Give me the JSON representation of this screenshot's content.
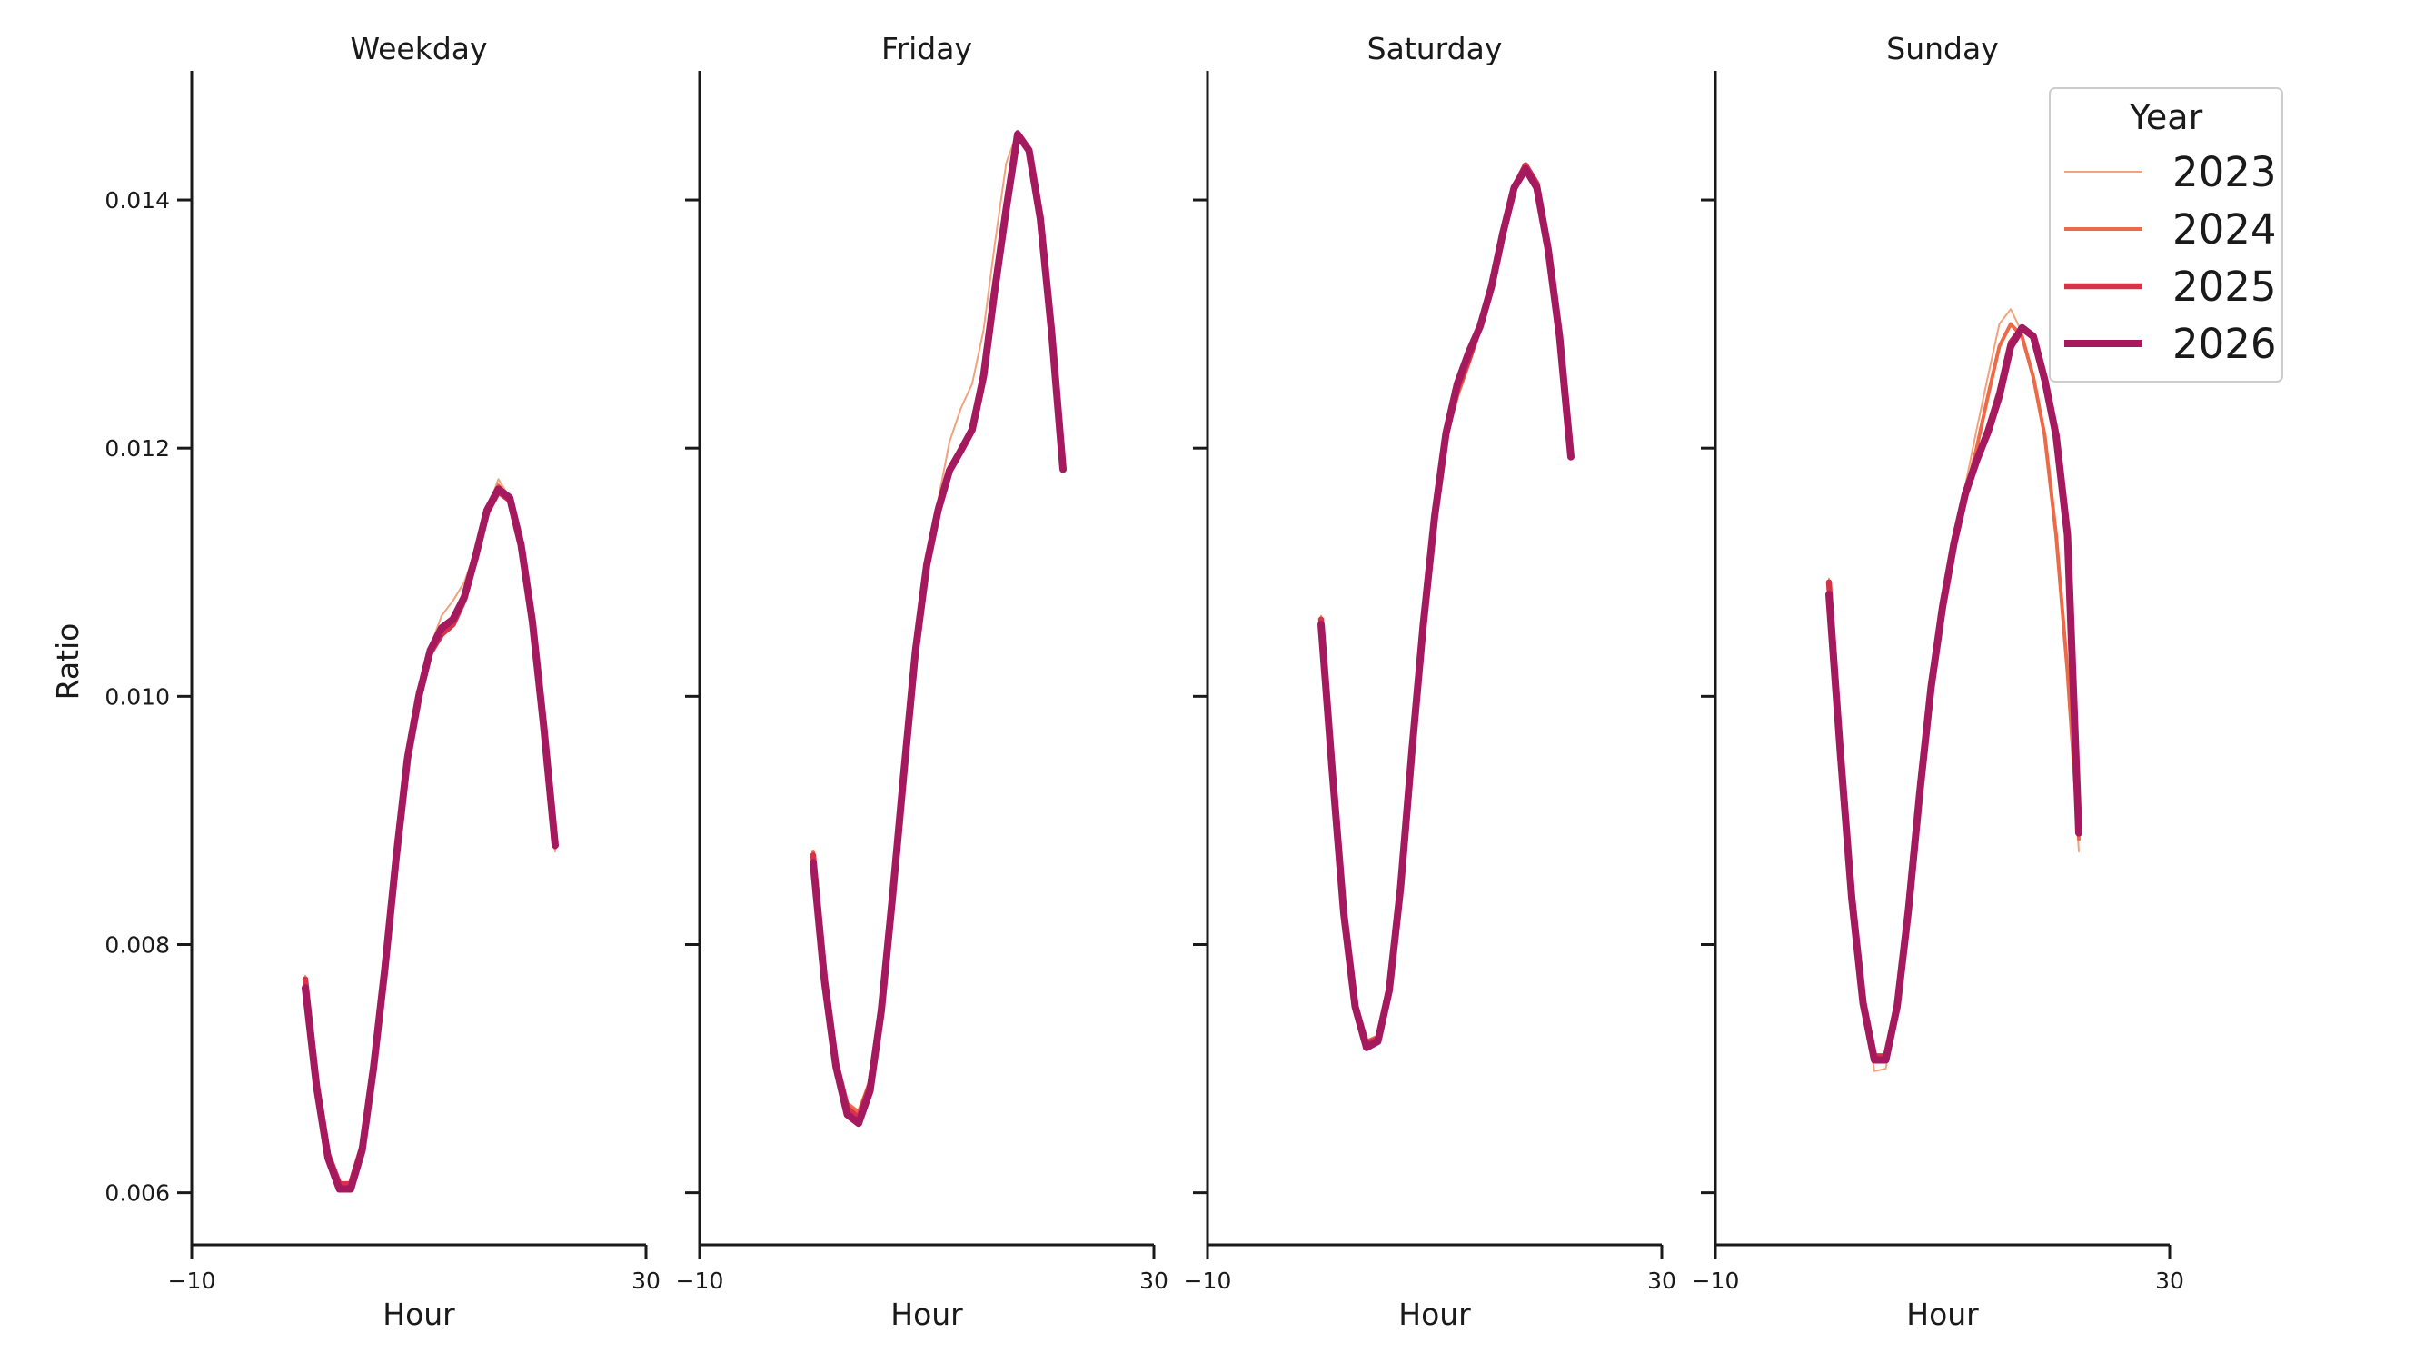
{
  "chart_data": {
    "type": "line",
    "ylabel": "Ratio",
    "xlabel": "Hour",
    "xlim": [
      -10,
      30
    ],
    "ylim": [
      0.00558,
      0.01504
    ],
    "x_ticks": [
      -10,
      30
    ],
    "x_tick_labels": [
      "−10",
      "30"
    ],
    "y_ticks": [
      0.006,
      0.008,
      0.01,
      0.012,
      0.014
    ],
    "y_tick_labels": [
      "0.006",
      "0.008",
      "0.010",
      "0.012",
      "0.014"
    ],
    "grid": false,
    "legend": {
      "title": "Year",
      "placement": "top-right",
      "entries": [
        {
          "label": "2023",
          "color": "#f3a27e"
        },
        {
          "label": "2024",
          "color": "#ec6a48"
        },
        {
          "label": "2025",
          "color": "#d5334a"
        },
        {
          "label": "2026",
          "color": "#a5195e"
        }
      ]
    },
    "x": [
      0,
      1,
      2,
      3,
      4,
      5,
      6,
      7,
      8,
      9,
      10,
      11,
      12,
      13,
      14,
      15,
      16,
      17,
      18,
      19,
      20,
      21,
      22,
      23
    ],
    "panels": [
      {
        "title": "Weekday",
        "series": [
          {
            "name": "2023",
            "values": [
              0.00775,
              0.0069,
              0.00632,
              0.00608,
              0.00608,
              0.0064,
              0.00705,
              0.00785,
              0.00875,
              0.00955,
              0.01005,
              0.0104,
              0.01065,
              0.01077,
              0.01092,
              0.01118,
              0.0115,
              0.01175,
              0.0116,
              0.0112,
              0.01058,
              0.00975,
              0.00875,
              null
            ]
          },
          {
            "name": "2024",
            "values": [
              0.0077,
              0.00688,
              0.0063,
              0.00606,
              0.00606,
              0.00636,
              0.00702,
              0.00782,
              0.00872,
              0.00952,
              0.01002,
              0.01035,
              0.01052,
              0.0106,
              0.01078,
              0.01112,
              0.0115,
              0.0117,
              0.0116,
              0.0112,
              0.01058,
              0.00975,
              0.00878,
              null
            ]
          },
          {
            "name": "2025",
            "values": [
              0.00772,
              0.00688,
              0.00631,
              0.00607,
              0.00607,
              0.00637,
              0.00703,
              0.00783,
              0.00873,
              0.00953,
              0.01003,
              0.01035,
              0.0105,
              0.01058,
              0.01078,
              0.01112,
              0.01148,
              0.01165,
              0.01158,
              0.01122,
              0.0106,
              0.00975,
              0.0088,
              null
            ]
          },
          {
            "name": "2026",
            "values": [
              0.00765,
              0.00685,
              0.00628,
              0.00603,
              0.00603,
              0.00634,
              0.007,
              0.0078,
              0.0087,
              0.0095,
              0.01,
              0.01037,
              0.01055,
              0.01062,
              0.0108,
              0.01113,
              0.0115,
              0.01167,
              0.0116,
              0.01122,
              0.0106,
              0.00975,
              0.0088,
              null
            ]
          }
        ]
      },
      {
        "title": "Friday",
        "series": [
          {
            "name": "2023",
            "values": [
              0.00875,
              0.00778,
              0.00708,
              0.0067,
              0.00662,
              0.00688,
              0.00752,
              0.00845,
              0.00945,
              0.0104,
              0.0111,
              0.01158,
              0.01205,
              0.01232,
              0.01252,
              0.01295,
              0.01365,
              0.0143,
              0.01455,
              0.0144,
              0.01385,
              0.01293,
              0.01183,
              null
            ]
          },
          {
            "name": "2024",
            "values": [
              0.00875,
              0.00778,
              0.00708,
              0.00672,
              0.00665,
              0.0069,
              0.00752,
              0.00845,
              0.00945,
              0.0104,
              0.0111,
              0.01155,
              0.01185,
              0.012,
              0.01218,
              0.0126,
              0.0133,
              0.01395,
              0.01455,
              0.0144,
              0.01385,
              0.01293,
              0.01183,
              null
            ]
          },
          {
            "name": "2025",
            "values": [
              0.00872,
              0.00775,
              0.00705,
              0.00668,
              0.0066,
              0.00686,
              0.0075,
              0.00843,
              0.00943,
              0.01038,
              0.01108,
              0.01152,
              0.01182,
              0.01198,
              0.01216,
              0.01258,
              0.01328,
              0.01393,
              0.01453,
              0.0144,
              0.01385,
              0.01293,
              0.01183,
              null
            ]
          },
          {
            "name": "2026",
            "values": [
              0.00866,
              0.0077,
              0.00702,
              0.00663,
              0.00656,
              0.00682,
              0.00747,
              0.0084,
              0.0094,
              0.01036,
              0.01106,
              0.0115,
              0.01182,
              0.01198,
              0.01215,
              0.01258,
              0.01328,
              0.01393,
              0.01453,
              0.0144,
              0.01385,
              0.01293,
              0.01183,
              null
            ]
          }
        ]
      },
      {
        "title": "Saturday",
        "series": [
          {
            "name": "2023",
            "values": [
              0.01065,
              0.00945,
              0.00828,
              0.00752,
              0.00722,
              0.00726,
              0.00766,
              0.00848,
              0.00958,
              0.0106,
              0.01148,
              0.01212,
              0.0125,
              0.01278,
              0.01305,
              0.01335,
              0.01375,
              0.0141,
              0.01428,
              0.01413,
              0.01363,
              0.0129,
              0.01193,
              null
            ]
          },
          {
            "name": "2024",
            "values": [
              0.01063,
              0.00942,
              0.00826,
              0.00752,
              0.00722,
              0.00726,
              0.00766,
              0.00848,
              0.00958,
              0.0106,
              0.01146,
              0.01208,
              0.01242,
              0.01268,
              0.01296,
              0.0133,
              0.01372,
              0.0141,
              0.01428,
              0.01413,
              0.01363,
              0.0129,
              0.01193,
              null
            ]
          },
          {
            "name": "2025",
            "values": [
              0.01062,
              0.0094,
              0.00825,
              0.00751,
              0.0072,
              0.00724,
              0.00765,
              0.00847,
              0.00957,
              0.01059,
              0.01145,
              0.0121,
              0.01248,
              0.01272,
              0.01298,
              0.01332,
              0.01373,
              0.0141,
              0.01428,
              0.01413,
              0.01363,
              0.0129,
              0.01193,
              null
            ]
          },
          {
            "name": "2026",
            "values": [
              0.01058,
              0.00938,
              0.00825,
              0.0075,
              0.00717,
              0.00722,
              0.00763,
              0.00846,
              0.00956,
              0.01058,
              0.01145,
              0.01212,
              0.01252,
              0.01277,
              0.01298,
              0.0133,
              0.01373,
              0.0141,
              0.01425,
              0.0141,
              0.0136,
              0.0129,
              0.01193,
              null
            ]
          }
        ]
      },
      {
        "title": "Sunday",
        "series": [
          {
            "name": "2023",
            "values": [
              0.01095,
              0.0096,
              0.0084,
              0.00755,
              0.00698,
              0.007,
              0.0075,
              0.0083,
              0.00925,
              0.0101,
              0.01078,
              0.0113,
              0.0117,
              0.01215,
              0.01258,
              0.013,
              0.01312,
              0.01293,
              0.01255,
              0.0121,
              0.0113,
              0.0102,
              0.00875,
              null
            ]
          },
          {
            "name": "2024",
            "values": [
              0.0109,
              0.00958,
              0.0084,
              0.00754,
              0.00707,
              0.00708,
              0.00752,
              0.0083,
              0.00925,
              0.0101,
              0.01076,
              0.01125,
              0.01162,
              0.012,
              0.01242,
              0.01282,
              0.013,
              0.0129,
              0.01257,
              0.0121,
              0.0113,
              0.0102,
              0.00885,
              null
            ]
          },
          {
            "name": "2025",
            "values": [
              0.01092,
              0.00958,
              0.0084,
              0.00754,
              0.0071,
              0.0071,
              0.00752,
              0.0083,
              0.00925,
              0.0101,
              0.01075,
              0.01125,
              0.01163,
              0.0119,
              0.01215,
              0.01245,
              0.01285,
              0.01297,
              0.0129,
              0.01255,
              0.0121,
              0.0113,
              0.0089,
              null
            ]
          },
          {
            "name": "2026",
            "values": [
              0.01082,
              0.00955,
              0.00838,
              0.00753,
              0.00707,
              0.00707,
              0.0075,
              0.00828,
              0.00923,
              0.01008,
              0.01072,
              0.01123,
              0.01163,
              0.0119,
              0.01213,
              0.01242,
              0.01282,
              0.01297,
              0.0129,
              0.01255,
              0.0121,
              0.0113,
              0.0089,
              null
            ]
          }
        ]
      }
    ]
  }
}
